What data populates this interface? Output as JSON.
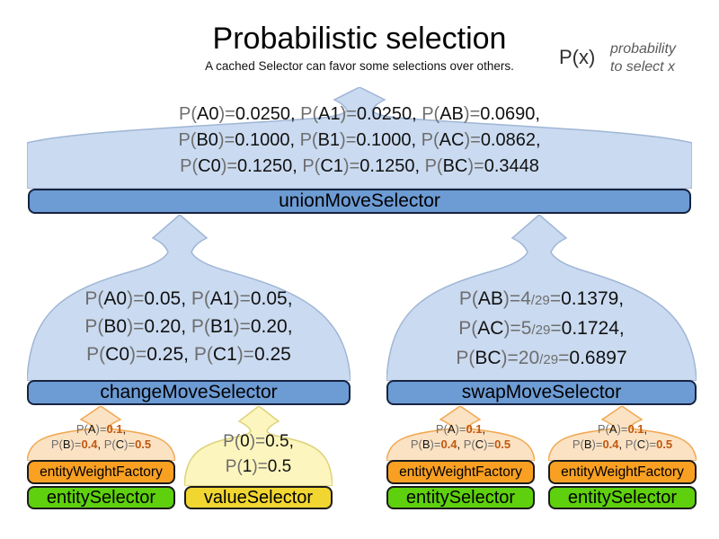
{
  "title": "Probabilistic selection",
  "subtitle": "A cached Selector can favor some selections over others.",
  "legend": {
    "symbol": "P(x)",
    "description": [
      "probability",
      "to select x"
    ]
  },
  "colors": {
    "funnel_blue": "#cadaf0",
    "bar_blue": "#6d9bd4",
    "funnel_orange": "#fbe2c3",
    "bar_orange": "#f9a023",
    "bar_green": "#5ed00e",
    "funnel_yellow": "#fcf5bd",
    "bar_yellow": "#f1d632",
    "text_gray": "#6e6e6e",
    "value_orange": "#c2570f"
  },
  "union_selector": {
    "label": "unionMoveSelector",
    "prob_lines": [
      [
        {
          "text": "P(",
          "style": "gray"
        },
        {
          "text": "A0",
          "style": "black"
        },
        {
          "text": ")=",
          "style": "gray"
        },
        {
          "text": "0.0250, ",
          "style": "black"
        },
        {
          "text": "P(",
          "style": "gray"
        },
        {
          "text": "A1",
          "style": "black"
        },
        {
          "text": ")=",
          "style": "gray"
        },
        {
          "text": "0.0250, ",
          "style": "black"
        },
        {
          "text": "P(",
          "style": "gray"
        },
        {
          "text": "AB",
          "style": "black"
        },
        {
          "text": ")=",
          "style": "gray"
        },
        {
          "text": "0.0690,",
          "style": "black"
        }
      ],
      [
        {
          "text": "P(",
          "style": "gray"
        },
        {
          "text": "B0",
          "style": "black"
        },
        {
          "text": ")=",
          "style": "gray"
        },
        {
          "text": "0.1000, ",
          "style": "black"
        },
        {
          "text": "P(",
          "style": "gray"
        },
        {
          "text": "B1",
          "style": "black"
        },
        {
          "text": ")=",
          "style": "gray"
        },
        {
          "text": "0.1000, ",
          "style": "black"
        },
        {
          "text": "P(",
          "style": "gray"
        },
        {
          "text": "AC",
          "style": "black"
        },
        {
          "text": ")=",
          "style": "gray"
        },
        {
          "text": "0.0862,",
          "style": "black"
        }
      ],
      [
        {
          "text": "P(",
          "style": "gray"
        },
        {
          "text": "C0",
          "style": "black"
        },
        {
          "text": ")=",
          "style": "gray"
        },
        {
          "text": "0.1250, ",
          "style": "black"
        },
        {
          "text": "P(",
          "style": "gray"
        },
        {
          "text": "C1",
          "style": "black"
        },
        {
          "text": ")=",
          "style": "gray"
        },
        {
          "text": "0.1250, ",
          "style": "black"
        },
        {
          "text": "P(",
          "style": "gray"
        },
        {
          "text": "BC",
          "style": "black"
        },
        {
          "text": ")=",
          "style": "gray"
        },
        {
          "text": "0.3448",
          "style": "black"
        }
      ]
    ]
  },
  "change_selector": {
    "label": "changeMoveSelector",
    "prob_lines": [
      [
        {
          "text": "P(",
          "style": "gray"
        },
        {
          "text": "A0",
          "style": "black"
        },
        {
          "text": ")=",
          "style": "gray"
        },
        {
          "text": "0.05, ",
          "style": "black"
        },
        {
          "text": "P(",
          "style": "gray"
        },
        {
          "text": "A1",
          "style": "black"
        },
        {
          "text": ")=",
          "style": "gray"
        },
        {
          "text": "0.05,",
          "style": "black"
        }
      ],
      [
        {
          "text": "P(",
          "style": "gray"
        },
        {
          "text": "B0",
          "style": "black"
        },
        {
          "text": ")=",
          "style": "gray"
        },
        {
          "text": "0.20, ",
          "style": "black"
        },
        {
          "text": "P(",
          "style": "gray"
        },
        {
          "text": "B1",
          "style": "black"
        },
        {
          "text": ")=",
          "style": "gray"
        },
        {
          "text": "0.20,",
          "style": "black"
        }
      ],
      [
        {
          "text": "P(",
          "style": "gray"
        },
        {
          "text": "C0",
          "style": "black"
        },
        {
          "text": ")=",
          "style": "gray"
        },
        {
          "text": "0.25, ",
          "style": "black"
        },
        {
          "text": "P(",
          "style": "gray"
        },
        {
          "text": "C1",
          "style": "black"
        },
        {
          "text": ")=",
          "style": "gray"
        },
        {
          "text": "0.25",
          "style": "black"
        }
      ]
    ]
  },
  "swap_selector": {
    "label": "swapMoveSelector",
    "prob_lines": [
      [
        {
          "text": "P(",
          "style": "gray"
        },
        {
          "text": "AB",
          "style": "black"
        },
        {
          "text": ")=",
          "style": "gray"
        },
        {
          "text": "4",
          "style": "gray"
        },
        {
          "text": "/29",
          "style": "gray-small"
        },
        {
          "text": "=",
          "style": "gray"
        },
        {
          "text": "0.1379,",
          "style": "black"
        }
      ],
      [
        {
          "text": "P(",
          "style": "gray"
        },
        {
          "text": "AC",
          "style": "black"
        },
        {
          "text": ")=",
          "style": "gray"
        },
        {
          "text": "5",
          "style": "gray"
        },
        {
          "text": "/29",
          "style": "gray-small"
        },
        {
          "text": "=",
          "style": "gray"
        },
        {
          "text": "0.1724,",
          "style": "black"
        }
      ],
      [
        {
          "text": "P(",
          "style": "gray"
        },
        {
          "text": "BC",
          "style": "black"
        },
        {
          "text": ")=",
          "style": "gray"
        },
        {
          "text": "20",
          "style": "gray"
        },
        {
          "text": "/29",
          "style": "gray-small"
        },
        {
          "text": "=",
          "style": "gray"
        },
        {
          "text": "0.6897",
          "style": "black"
        }
      ]
    ]
  },
  "value_stack": {
    "selector_label": "valueSelector",
    "prob_lines": [
      [
        {
          "text": "P(",
          "style": "gray"
        },
        {
          "text": "0",
          "style": "black"
        },
        {
          "text": ")=",
          "style": "gray"
        },
        {
          "text": "0.5,",
          "style": "black"
        }
      ],
      [
        {
          "text": "P(",
          "style": "gray"
        },
        {
          "text": "1",
          "style": "black"
        },
        {
          "text": ")=",
          "style": "gray"
        },
        {
          "text": "0.5",
          "style": "black"
        }
      ]
    ]
  },
  "entity_stacks": [
    {
      "weight_label": "entityWeightFactory",
      "selector_label": "entitySelector",
      "prob_lines": [
        [
          {
            "text": "P(",
            "style": "gray"
          },
          {
            "text": "A",
            "style": "black"
          },
          {
            "text": ")=",
            "style": "gray"
          },
          {
            "text": "0.1",
            "style": "orange"
          },
          {
            "text": ",",
            "style": "black"
          }
        ],
        [
          {
            "text": "P(",
            "style": "gray"
          },
          {
            "text": "B",
            "style": "black"
          },
          {
            "text": ")=",
            "style": "gray"
          },
          {
            "text": "0.4",
            "style": "orange"
          },
          {
            "text": ", ",
            "style": "black"
          },
          {
            "text": "P(",
            "style": "gray"
          },
          {
            "text": "C",
            "style": "black"
          },
          {
            "text": ")=",
            "style": "gray"
          },
          {
            "text": "0.5",
            "style": "orange"
          }
        ]
      ]
    },
    {
      "weight_label": "entityWeightFactory",
      "selector_label": "entitySelector",
      "prob_lines": [
        [
          {
            "text": "P(",
            "style": "gray"
          },
          {
            "text": "A",
            "style": "black"
          },
          {
            "text": ")=",
            "style": "gray"
          },
          {
            "text": "0.1",
            "style": "orange"
          },
          {
            "text": ",",
            "style": "black"
          }
        ],
        [
          {
            "text": "P(",
            "style": "gray"
          },
          {
            "text": "B",
            "style": "black"
          },
          {
            "text": ")=",
            "style": "gray"
          },
          {
            "text": "0.4",
            "style": "orange"
          },
          {
            "text": ", ",
            "style": "black"
          },
          {
            "text": "P(",
            "style": "gray"
          },
          {
            "text": "C",
            "style": "black"
          },
          {
            "text": ")=",
            "style": "gray"
          },
          {
            "text": "0.5",
            "style": "orange"
          }
        ]
      ]
    },
    {
      "weight_label": "entityWeightFactory",
      "selector_label": "entitySelector",
      "prob_lines": [
        [
          {
            "text": "P(",
            "style": "gray"
          },
          {
            "text": "A",
            "style": "black"
          },
          {
            "text": ")=",
            "style": "gray"
          },
          {
            "text": "0.1",
            "style": "orange"
          },
          {
            "text": ",",
            "style": "black"
          }
        ],
        [
          {
            "text": "P(",
            "style": "gray"
          },
          {
            "text": "B",
            "style": "black"
          },
          {
            "text": ")=",
            "style": "gray"
          },
          {
            "text": "0.4",
            "style": "orange"
          },
          {
            "text": ", ",
            "style": "black"
          },
          {
            "text": "P(",
            "style": "gray"
          },
          {
            "text": "C",
            "style": "black"
          },
          {
            "text": ")=",
            "style": "gray"
          },
          {
            "text": "0.5",
            "style": "orange"
          }
        ]
      ]
    }
  ]
}
